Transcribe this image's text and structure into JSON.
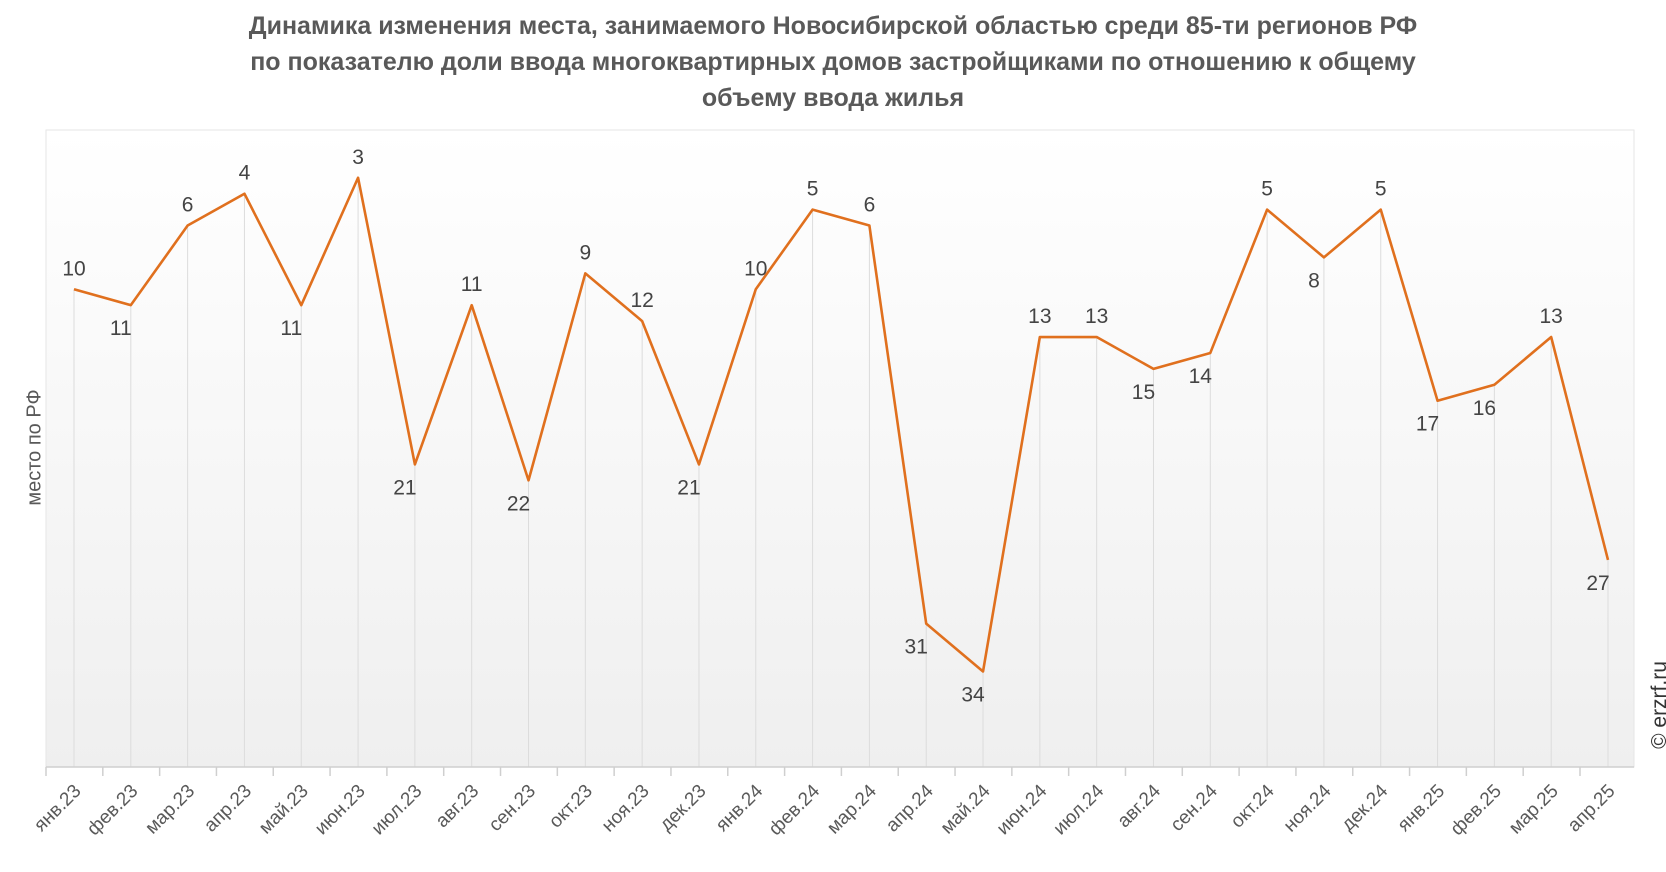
{
  "chart_data": {
    "type": "line",
    "title": [
      "Динамика изменения места, занимаемого Новосибирской областью среди 85-ти регионов РФ",
      "по показателю доли ввода многоквартирных домов застройщиками по отношению к общему",
      "объему ввода жилья"
    ],
    "ylabel": "место по РФ",
    "xlabel": "",
    "ylim": [
      40,
      0
    ],
    "y_inverted": true,
    "grid": "vertical",
    "categories": [
      "янв.23",
      "фев.23",
      "мар.23",
      "апр.23",
      "май.23",
      "июн.23",
      "июл.23",
      "авг.23",
      "сен.23",
      "окт.23",
      "ноя.23",
      "дек.23",
      "янв.24",
      "фев.24",
      "мар.24",
      "апр.24",
      "май.24",
      "июн.24",
      "июл.24",
      "авг.24",
      "сен.24",
      "окт.24",
      "ноя.24",
      "дек.24",
      "янв.25",
      "фев.25",
      "мар.25",
      "апр.25"
    ],
    "series": [
      {
        "name": "место по РФ",
        "color": "#e0701e",
        "values": [
          10,
          11,
          6,
          4,
          11,
          3,
          21,
          11,
          22,
          9,
          12,
          21,
          10,
          5,
          6,
          31,
          34,
          13,
          13,
          15,
          14,
          5,
          8,
          5,
          17,
          16,
          13,
          27
        ]
      }
    ]
  },
  "watermark": "© erzrf.ru"
}
